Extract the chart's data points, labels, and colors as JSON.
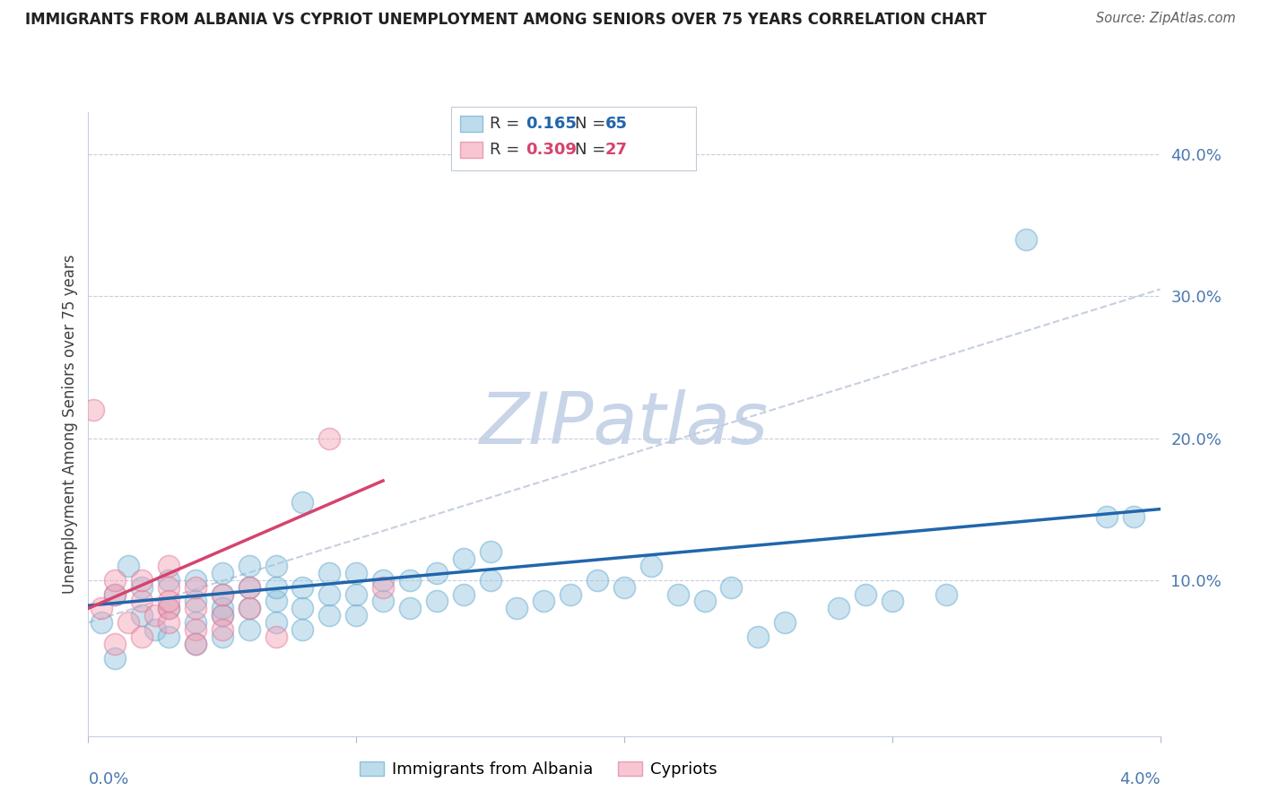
{
  "title": "IMMIGRANTS FROM ALBANIA VS CYPRIOT UNEMPLOYMENT AMONG SENIORS OVER 75 YEARS CORRELATION CHART",
  "source": "Source: ZipAtlas.com",
  "ylabel": "Unemployment Among Seniors over 75 years",
  "xlim": [
    0.0,
    0.04
  ],
  "ylim": [
    -0.01,
    0.43
  ],
  "ytick_vals": [
    0.1,
    0.2,
    0.3,
    0.4
  ],
  "ytick_labels": [
    "10.0%",
    "20.0%",
    "30.0%",
    "40.0%"
  ],
  "blue_color": "#92c5de",
  "blue_edge_color": "#5ba3cc",
  "blue_line_color": "#2166ac",
  "pink_color": "#f4a0b5",
  "pink_edge_color": "#e07090",
  "pink_line_color": "#d6436e",
  "watermark": "ZIPatlas",
  "watermark_color": "#c8d4e8",
  "blue_scatter_x": [
    0.0005,
    0.001,
    0.0015,
    0.001,
    0.002,
    0.002,
    0.0025,
    0.003,
    0.003,
    0.003,
    0.004,
    0.004,
    0.004,
    0.004,
    0.005,
    0.005,
    0.005,
    0.005,
    0.005,
    0.006,
    0.006,
    0.006,
    0.006,
    0.007,
    0.007,
    0.007,
    0.007,
    0.008,
    0.008,
    0.008,
    0.008,
    0.009,
    0.009,
    0.009,
    0.01,
    0.01,
    0.01,
    0.011,
    0.011,
    0.012,
    0.012,
    0.013,
    0.013,
    0.014,
    0.014,
    0.015,
    0.015,
    0.016,
    0.017,
    0.018,
    0.019,
    0.02,
    0.021,
    0.022,
    0.023,
    0.024,
    0.025,
    0.026,
    0.028,
    0.029,
    0.03,
    0.032,
    0.035,
    0.038,
    0.039
  ],
  "blue_scatter_y": [
    0.07,
    0.09,
    0.11,
    0.045,
    0.075,
    0.095,
    0.065,
    0.06,
    0.08,
    0.1,
    0.055,
    0.07,
    0.085,
    0.1,
    0.06,
    0.075,
    0.09,
    0.105,
    0.08,
    0.065,
    0.08,
    0.095,
    0.11,
    0.07,
    0.085,
    0.095,
    0.11,
    0.065,
    0.08,
    0.095,
    0.155,
    0.075,
    0.09,
    0.105,
    0.075,
    0.09,
    0.105,
    0.085,
    0.1,
    0.08,
    0.1,
    0.085,
    0.105,
    0.09,
    0.115,
    0.1,
    0.12,
    0.08,
    0.085,
    0.09,
    0.1,
    0.095,
    0.11,
    0.09,
    0.085,
    0.095,
    0.06,
    0.07,
    0.08,
    0.09,
    0.085,
    0.09,
    0.34,
    0.145,
    0.145
  ],
  "pink_scatter_x": [
    0.0002,
    0.0005,
    0.001,
    0.001,
    0.001,
    0.0015,
    0.002,
    0.002,
    0.002,
    0.0025,
    0.003,
    0.003,
    0.003,
    0.003,
    0.003,
    0.004,
    0.004,
    0.004,
    0.004,
    0.005,
    0.005,
    0.005,
    0.006,
    0.006,
    0.007,
    0.009,
    0.011
  ],
  "pink_scatter_y": [
    0.22,
    0.08,
    0.09,
    0.1,
    0.055,
    0.07,
    0.085,
    0.1,
    0.06,
    0.075,
    0.08,
    0.095,
    0.11,
    0.07,
    0.085,
    0.065,
    0.08,
    0.095,
    0.055,
    0.075,
    0.09,
    0.065,
    0.08,
    0.095,
    0.06,
    0.2,
    0.095
  ],
  "blue_line_x0": 0.0,
  "blue_line_y0": 0.082,
  "blue_line_x1": 0.04,
  "blue_line_y1": 0.15,
  "pink_line_x0": 0.0,
  "pink_line_y0": 0.08,
  "pink_line_x1": 0.011,
  "pink_line_y1": 0.17,
  "dash_line_x0": 0.0,
  "dash_line_y0": 0.07,
  "dash_line_x1": 0.04,
  "dash_line_y1": 0.305
}
